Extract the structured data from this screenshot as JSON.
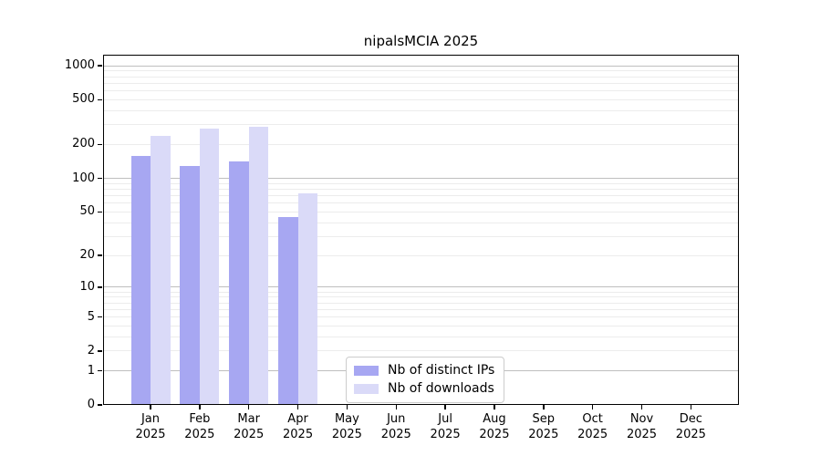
{
  "chart_data": {
    "type": "bar",
    "title": "nipalsMCIA 2025",
    "categories": [
      "Jan",
      "Feb",
      "Mar",
      "Apr",
      "May",
      "Jun",
      "Jul",
      "Aug",
      "Sep",
      "Oct",
      "Nov",
      "Dec"
    ],
    "category_year": "2025",
    "series": [
      {
        "name": "Nb of distinct IPs",
        "color": "#a7a7f2",
        "values": [
          158,
          129,
          142,
          45,
          0,
          0,
          0,
          0,
          0,
          0,
          0,
          0
        ]
      },
      {
        "name": "Nb of downloads",
        "color": "#dadaf8",
        "values": [
          240,
          279,
          286,
          73,
          0,
          0,
          0,
          0,
          0,
          0,
          0,
          0
        ]
      }
    ],
    "yscale": "log1p",
    "yticks": [
      0,
      1,
      2,
      5,
      10,
      20,
      50,
      100,
      200,
      500,
      1000
    ],
    "ymax": 1250,
    "ylim": [
      0,
      1250
    ],
    "grid": {
      "major_values": [
        1,
        10,
        100,
        1000
      ],
      "minor_values": [
        2,
        3,
        4,
        5,
        6,
        7,
        8,
        9,
        20,
        30,
        40,
        50,
        60,
        70,
        80,
        90,
        200,
        300,
        400,
        500,
        600,
        700,
        800,
        900
      ],
      "major_color": "#bfbfbf",
      "minor_color": "#ececec"
    },
    "legend": {
      "position": "lower center",
      "entries": [
        "Nb of distinct IPs",
        "Nb of downloads"
      ]
    }
  }
}
